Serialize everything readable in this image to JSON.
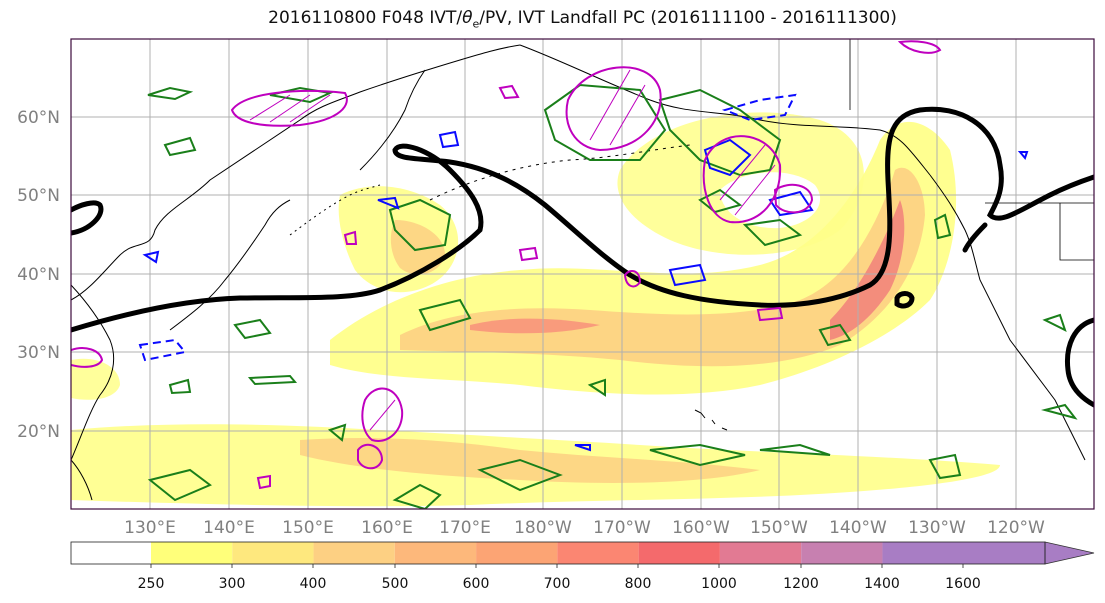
{
  "title": {
    "prefix": "2016110800 F048 IVT/",
    "theta": "θ",
    "theta_sub": "e",
    "suffix": "/PV, IVT Landfall PC (2016111100 - 2016111300)"
  },
  "lat_labels": [
    "60°N",
    "50°N",
    "40°N",
    "30°N",
    "20°N"
  ],
  "lon_labels": [
    "130°E",
    "140°E",
    "150°E",
    "160°E",
    "170°E",
    "180°W",
    "170°W",
    "160°W",
    "150°W",
    "140°W",
    "130°W",
    "120°W"
  ],
  "colorbar": {
    "ticks": [
      "250",
      "300",
      "400",
      "500",
      "600",
      "700",
      "800",
      "1000",
      "1200",
      "1400",
      "1600"
    ],
    "colors": [
      "#ffffff",
      "#ffff7a",
      "#fee87e",
      "#fdd083",
      "#fdb87b",
      "#fca474",
      "#fb8672",
      "#f46a6c",
      "#e27a93",
      "#c780b0",
      "#a87dc4"
    ]
  },
  "colors": {
    "contour_black": "#000000",
    "contour_green": "#1a7f1a",
    "contour_blue": "#0a0aff",
    "contour_magenta": "#bf00bf",
    "coastline": "#000000",
    "grid": "#b0b0b0",
    "frame": "#3d0a3d"
  }
}
